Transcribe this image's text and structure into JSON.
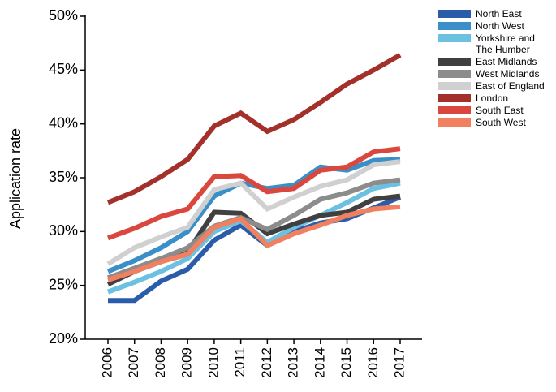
{
  "chart_data": {
    "type": "line",
    "y_label": "Application rate",
    "x": [
      "2006",
      "2007",
      "2008",
      "2009",
      "2010",
      "2011",
      "2012",
      "2013",
      "2014",
      "2015",
      "2016",
      "2017"
    ],
    "ylim": [
      20,
      50
    ],
    "yticks": [
      {
        "value": 20,
        "label": "20%"
      },
      {
        "value": 25,
        "label": "25%"
      },
      {
        "value": 30,
        "label": "30%"
      },
      {
        "value": 35,
        "label": "35%"
      },
      {
        "value": 40,
        "label": "40%"
      },
      {
        "value": 45,
        "label": "45%"
      },
      {
        "value": 50,
        "label": "50%"
      }
    ],
    "legend": "outside-right",
    "series": [
      {
        "name": "North East",
        "color": "#2a5caa",
        "values": [
          23.6,
          23.6,
          25.4,
          26.5,
          29.2,
          30.6,
          28.7,
          30.0,
          30.8,
          31.2,
          32.2,
          33.2
        ]
      },
      {
        "name": "North West",
        "color": "#3a8fc8",
        "values": [
          26.3,
          27.3,
          28.5,
          30.0,
          33.3,
          34.5,
          34.0,
          34.3,
          36.0,
          35.7,
          36.6,
          36.7
        ]
      },
      {
        "name": "Yorkshire and The Humber",
        "color": "#6cc0e0",
        "values": [
          24.4,
          25.3,
          26.3,
          27.5,
          30.0,
          31.0,
          29.0,
          30.4,
          31.5,
          32.7,
          34.0,
          34.5
        ]
      },
      {
        "name": "East Midlands",
        "color": "#404040",
        "values": [
          25.1,
          26.3,
          27.2,
          28.1,
          31.8,
          31.7,
          29.8,
          30.7,
          31.5,
          31.8,
          33.0,
          33.3
        ]
      },
      {
        "name": "West Midlands",
        "color": "#8c8c8c",
        "values": [
          25.7,
          26.6,
          27.5,
          28.5,
          30.5,
          31.3,
          30.2,
          31.5,
          33.0,
          33.6,
          34.5,
          34.8
        ]
      },
      {
        "name": "East of England",
        "color": "#d0d0d0",
        "values": [
          27.0,
          28.5,
          29.5,
          30.4,
          33.9,
          34.5,
          32.1,
          33.2,
          34.2,
          34.8,
          36.2,
          36.5
        ]
      },
      {
        "name": "London",
        "color": "#a3302a",
        "values": [
          32.7,
          33.7,
          35.1,
          36.7,
          39.8,
          41.0,
          39.3,
          40.4,
          42.0,
          43.7,
          45.0,
          46.4
        ]
      },
      {
        "name": "South East",
        "color": "#d9473e",
        "values": [
          29.4,
          30.3,
          31.4,
          32.1,
          35.1,
          35.2,
          33.7,
          34.0,
          35.7,
          36.0,
          37.4,
          37.7
        ]
      },
      {
        "name": "South West",
        "color": "#f08060",
        "values": [
          25.5,
          26.3,
          27.2,
          27.9,
          30.4,
          31.2,
          28.7,
          29.8,
          30.6,
          31.5,
          32.1,
          32.3
        ]
      }
    ]
  }
}
